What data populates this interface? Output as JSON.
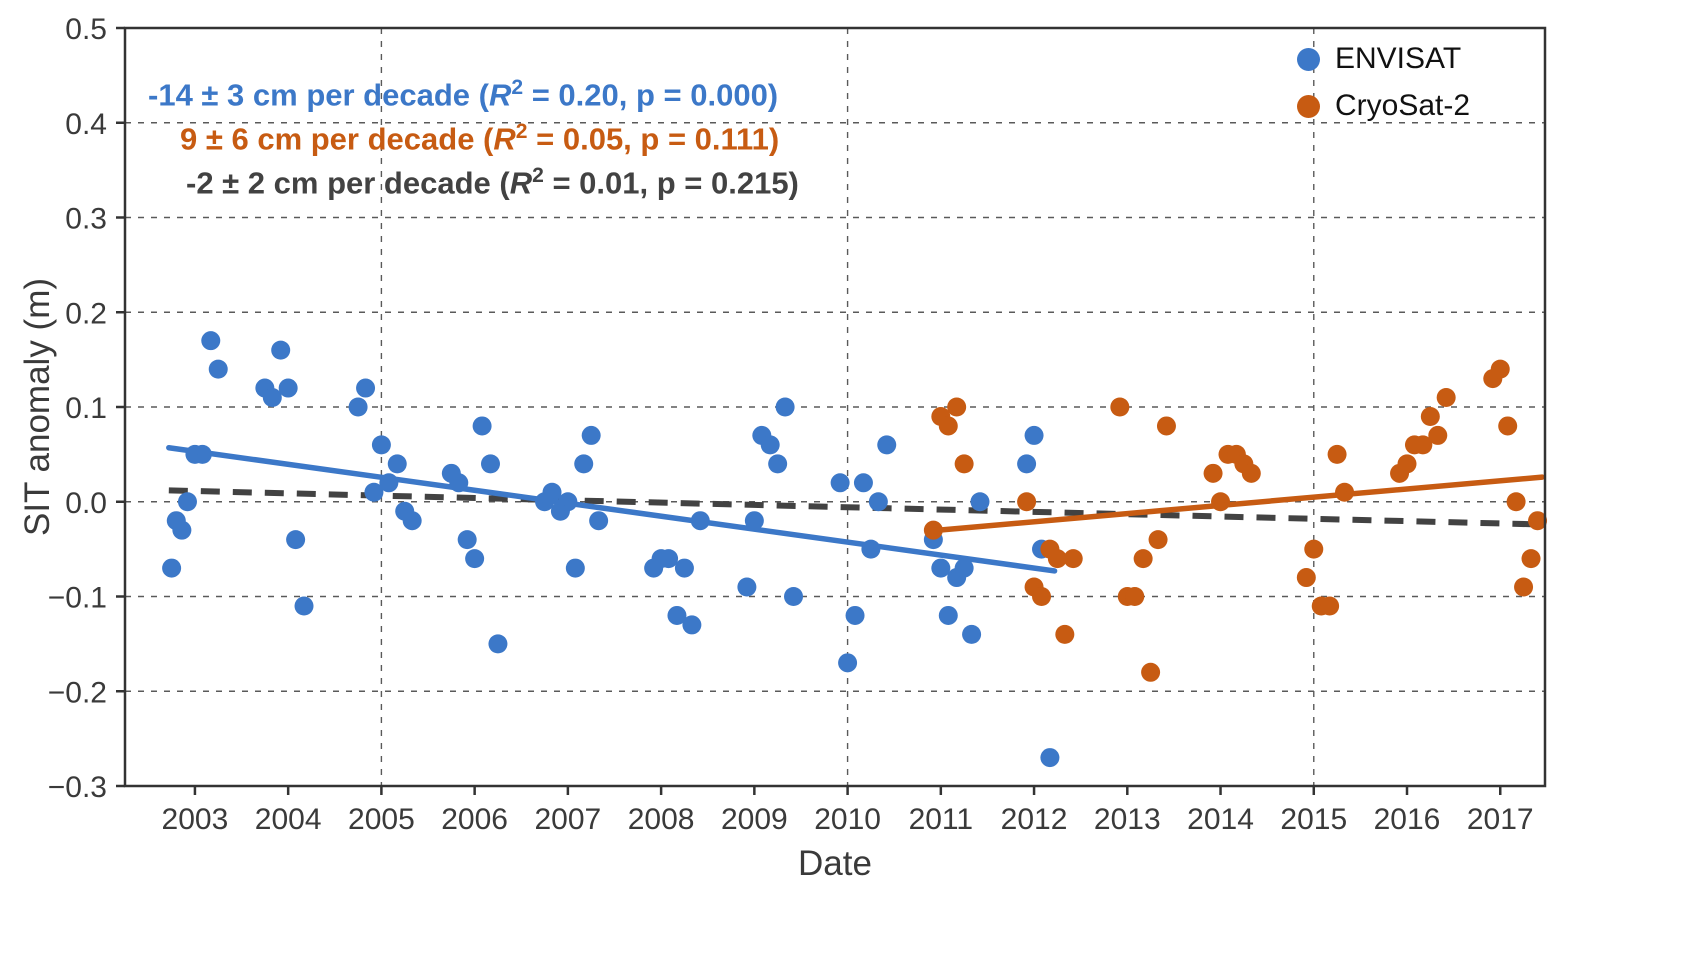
{
  "figure": {
    "background": "#ffffff",
    "spine_color": "#333333",
    "grid_color": "#5a5a5a",
    "tick_label_color": "#3a3a3a"
  },
  "annotations": [
    {
      "text": "-14 ± 3 cm per decade (R² = 0.20, p = 0.000)",
      "color": "#3c78c8"
    },
    {
      "text": "9 ± 6 cm per decade (R² = 0.05, p = 0.111)",
      "color": "#c75b12"
    },
    {
      "text": "-2 ± 2 cm per decade (R² = 0.01, p = 0.215)",
      "color": "#424242"
    }
  ],
  "legend": {
    "items": [
      {
        "label": "ENVISAT",
        "color": "#3c78c8"
      },
      {
        "label": "CryoSat-2",
        "color": "#c75b12"
      }
    ]
  },
  "chart_data": {
    "type": "scatter",
    "title": "",
    "xlabel": "Date",
    "ylabel": "SIT anomaly (m)",
    "xlim": [
      2002.25,
      2017.48
    ],
    "ylim": [
      -0.3,
      0.5
    ],
    "xticks": [
      2003,
      2004,
      2005,
      2006,
      2007,
      2008,
      2009,
      2010,
      2011,
      2012,
      2013,
      2014,
      2015,
      2016,
      2017
    ],
    "yticks": [
      -0.3,
      -0.2,
      -0.1,
      0,
      0.1,
      0.2,
      0.3,
      0.4,
      0.5
    ],
    "x_gridlines": [
      2005,
      2010,
      2015
    ],
    "grid": true,
    "legend_position": "upper right",
    "series": [
      {
        "name": "ENVISAT",
        "color": "#3c78c8",
        "trend": {
          "x": [
            2002.72,
            2012.22
          ],
          "y": [
            0.057,
            -0.073
          ],
          "slope_cm_per_decade": -14,
          "slope_err": 3,
          "r2": 0.2,
          "p": 0.0
        },
        "points": [
          [
            2002.75,
            -0.07
          ],
          [
            2002.8,
            -0.02
          ],
          [
            2002.86,
            -0.03
          ],
          [
            2002.92,
            0.0
          ],
          [
            2003.0,
            0.05
          ],
          [
            2003.08,
            0.05
          ],
          [
            2003.17,
            0.17
          ],
          [
            2003.25,
            0.14
          ],
          [
            2003.75,
            0.12
          ],
          [
            2003.83,
            0.11
          ],
          [
            2003.92,
            0.16
          ],
          [
            2004.0,
            0.12
          ],
          [
            2004.08,
            -0.04
          ],
          [
            2004.17,
            -0.11
          ],
          [
            2004.75,
            0.1
          ],
          [
            2004.83,
            0.12
          ],
          [
            2004.92,
            0.01
          ],
          [
            2005.0,
            0.06
          ],
          [
            2005.08,
            0.02
          ],
          [
            2005.17,
            0.04
          ],
          [
            2005.25,
            -0.01
          ],
          [
            2005.33,
            -0.02
          ],
          [
            2005.75,
            0.03
          ],
          [
            2005.83,
            0.02
          ],
          [
            2005.92,
            -0.04
          ],
          [
            2006.0,
            -0.06
          ],
          [
            2006.08,
            0.08
          ],
          [
            2006.17,
            0.04
          ],
          [
            2006.25,
            -0.15
          ],
          [
            2006.75,
            0.0
          ],
          [
            2006.83,
            0.01
          ],
          [
            2006.92,
            -0.01
          ],
          [
            2007.0,
            0.0
          ],
          [
            2007.08,
            -0.07
          ],
          [
            2007.17,
            0.04
          ],
          [
            2007.25,
            0.07
          ],
          [
            2007.33,
            -0.02
          ],
          [
            2007.92,
            -0.07
          ],
          [
            2008.0,
            -0.06
          ],
          [
            2008.08,
            -0.06
          ],
          [
            2008.17,
            -0.12
          ],
          [
            2008.25,
            -0.07
          ],
          [
            2008.33,
            -0.13
          ],
          [
            2008.42,
            -0.02
          ],
          [
            2008.92,
            -0.09
          ],
          [
            2009.0,
            -0.02
          ],
          [
            2009.08,
            0.07
          ],
          [
            2009.17,
            0.06
          ],
          [
            2009.25,
            0.04
          ],
          [
            2009.33,
            0.1
          ],
          [
            2009.42,
            -0.1
          ],
          [
            2009.92,
            0.02
          ],
          [
            2010.0,
            -0.17
          ],
          [
            2010.08,
            -0.12
          ],
          [
            2010.17,
            0.02
          ],
          [
            2010.25,
            -0.05
          ],
          [
            2010.33,
            0.0
          ],
          [
            2010.42,
            0.06
          ],
          [
            2010.92,
            -0.04
          ],
          [
            2011.0,
            -0.07
          ],
          [
            2011.08,
            -0.12
          ],
          [
            2011.17,
            -0.08
          ],
          [
            2011.25,
            -0.07
          ],
          [
            2011.33,
            -0.14
          ],
          [
            2011.42,
            0.0
          ],
          [
            2011.92,
            0.04
          ],
          [
            2012.0,
            0.07
          ],
          [
            2012.08,
            -0.05
          ],
          [
            2012.17,
            -0.27
          ]
        ]
      },
      {
        "name": "CryoSat-2",
        "color": "#c75b12",
        "trend": {
          "x": [
            2010.86,
            2017.45
          ],
          "y": [
            -0.031,
            0.026
          ],
          "slope_cm_per_decade": 9,
          "slope_err": 6,
          "r2": 0.05,
          "p": 0.111
        },
        "points": [
          [
            2010.92,
            -0.03
          ],
          [
            2011.0,
            0.09
          ],
          [
            2011.08,
            0.08
          ],
          [
            2011.17,
            0.1
          ],
          [
            2011.25,
            0.04
          ],
          [
            2011.92,
            0.0
          ],
          [
            2012.0,
            -0.09
          ],
          [
            2012.08,
            -0.1
          ],
          [
            2012.17,
            -0.05
          ],
          [
            2012.25,
            -0.06
          ],
          [
            2012.33,
            -0.14
          ],
          [
            2012.42,
            -0.06
          ],
          [
            2012.92,
            0.1
          ],
          [
            2013.0,
            -0.1
          ],
          [
            2013.08,
            -0.1
          ],
          [
            2013.17,
            -0.06
          ],
          [
            2013.25,
            -0.18
          ],
          [
            2013.33,
            -0.04
          ],
          [
            2013.42,
            0.08
          ],
          [
            2013.92,
            0.03
          ],
          [
            2014.0,
            0.0
          ],
          [
            2014.08,
            0.05
          ],
          [
            2014.17,
            0.05
          ],
          [
            2014.25,
            0.04
          ],
          [
            2014.33,
            0.03
          ],
          [
            2014.92,
            -0.08
          ],
          [
            2015.0,
            -0.05
          ],
          [
            2015.08,
            -0.11
          ],
          [
            2015.17,
            -0.11
          ],
          [
            2015.25,
            0.05
          ],
          [
            2015.33,
            0.01
          ],
          [
            2015.92,
            0.03
          ],
          [
            2016.0,
            0.04
          ],
          [
            2016.08,
            0.06
          ],
          [
            2016.17,
            0.06
          ],
          [
            2016.25,
            0.09
          ],
          [
            2016.33,
            0.07
          ],
          [
            2016.42,
            0.11
          ],
          [
            2016.92,
            0.13
          ],
          [
            2017.0,
            0.14
          ],
          [
            2017.08,
            0.08
          ],
          [
            2017.17,
            0.0
          ],
          [
            2017.25,
            -0.09
          ],
          [
            2017.33,
            -0.06
          ],
          [
            2017.4,
            -0.02
          ]
        ]
      }
    ],
    "combined_trend": {
      "x": [
        2002.72,
        2017.45
      ],
      "y": [
        0.012,
        -0.024
      ],
      "color": "#424242",
      "style": "dashed",
      "slope_cm_per_decade": -2,
      "slope_err": 2,
      "r2": 0.01,
      "p": 0.215
    }
  }
}
